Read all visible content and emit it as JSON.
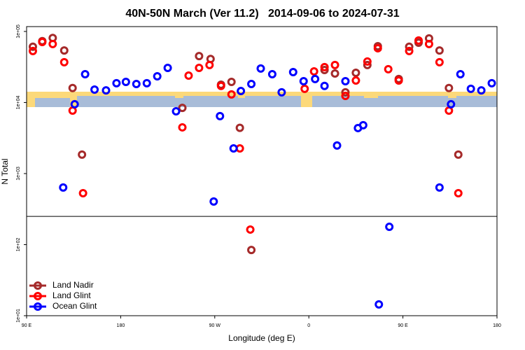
{
  "chart_data": {
    "type": "scatter",
    "title": "40N-50N March (Ver 11.2)   2014-09-06 to 2024-07-31",
    "x_label": "Longitude (deg E)",
    "y_label": "N Total",
    "log_y": true,
    "xlim": [
      90,
      540
    ],
    "ylim": [
      10,
      117000
    ],
    "xticks": [
      {
        "value": 90,
        "label": "90 E"
      },
      {
        "value": 180,
        "label": "180"
      },
      {
        "value": 270,
        "label": "90 W"
      },
      {
        "value": 360,
        "label": "0"
      },
      {
        "value": 450,
        "label": "90 E"
      },
      {
        "value": 540,
        "label": "180"
      }
    ],
    "yticks": [
      {
        "value": 10,
        "label": "1e+01"
      },
      {
        "value": 100,
        "label": "1e+02"
      },
      {
        "value": 1000,
        "label": "1e+03"
      },
      {
        "value": 10000,
        "label": "1e+04"
      },
      {
        "value": 100000,
        "label": "1e+05"
      }
    ],
    "hline": 250,
    "legend": "bottom-left",
    "series": [
      {
        "name": "Land Nadir",
        "color": "#a52a2a",
        "x": [
          96,
          105,
          115,
          126,
          134,
          143,
          239,
          255,
          266,
          276,
          286,
          294,
          305,
          375,
          385,
          395,
          405,
          416,
          426,
          446,
          456,
          465,
          475,
          485,
          494,
          503
        ],
        "values": [
          61000,
          73000,
          81000,
          54000,
          16000,
          1850,
          8400,
          45000,
          41000,
          17800,
          19500,
          4400,
          84,
          28700,
          25600,
          13900,
          26200,
          33700,
          62000,
          21400,
          61000,
          69500,
          79700,
          54000,
          16000,
          1850
        ]
      },
      {
        "name": "Land Glint",
        "color": "#ff0000",
        "x": [
          96,
          105,
          115,
          126,
          134,
          144,
          239,
          245,
          255,
          265,
          276,
          286,
          294,
          304,
          356,
          365,
          375,
          385,
          395,
          405,
          416,
          426,
          436,
          446,
          456,
          465,
          475,
          485,
          494,
          503
        ],
        "values": [
          53000,
          71000,
          66500,
          36900,
          7700,
          530,
          4470,
          23900,
          30700,
          33700,
          17100,
          13000,
          2260,
          163,
          15600,
          27400,
          31500,
          33700,
          12400,
          20400,
          37700,
          58000,
          29400,
          20400,
          53000,
          74500,
          66500,
          36900,
          7700,
          530
        ]
      },
      {
        "name": "Ocean Glint",
        "color": "#0000ff",
        "x": [
          125,
          136,
          146,
          155,
          166,
          176,
          185,
          195,
          205,
          215,
          225,
          233,
          269,
          275,
          288,
          295,
          305,
          314,
          325,
          334,
          345,
          355,
          366,
          375,
          387,
          395,
          407,
          412,
          427,
          437,
          485,
          496,
          505,
          515,
          525,
          535
        ],
        "values": [
          636,
          9450,
          25000,
          15200,
          14800,
          18700,
          19500,
          18200,
          18700,
          23400,
          30700,
          7530,
          404,
          6430,
          2260,
          14500,
          18200,
          30100,
          25000,
          13900,
          26800,
          19950,
          21400,
          17100,
          2480,
          19950,
          4370,
          4790,
          14.4,
          178,
          636,
          9450,
          25000,
          15600,
          14800,
          18700
        ]
      }
    ]
  }
}
